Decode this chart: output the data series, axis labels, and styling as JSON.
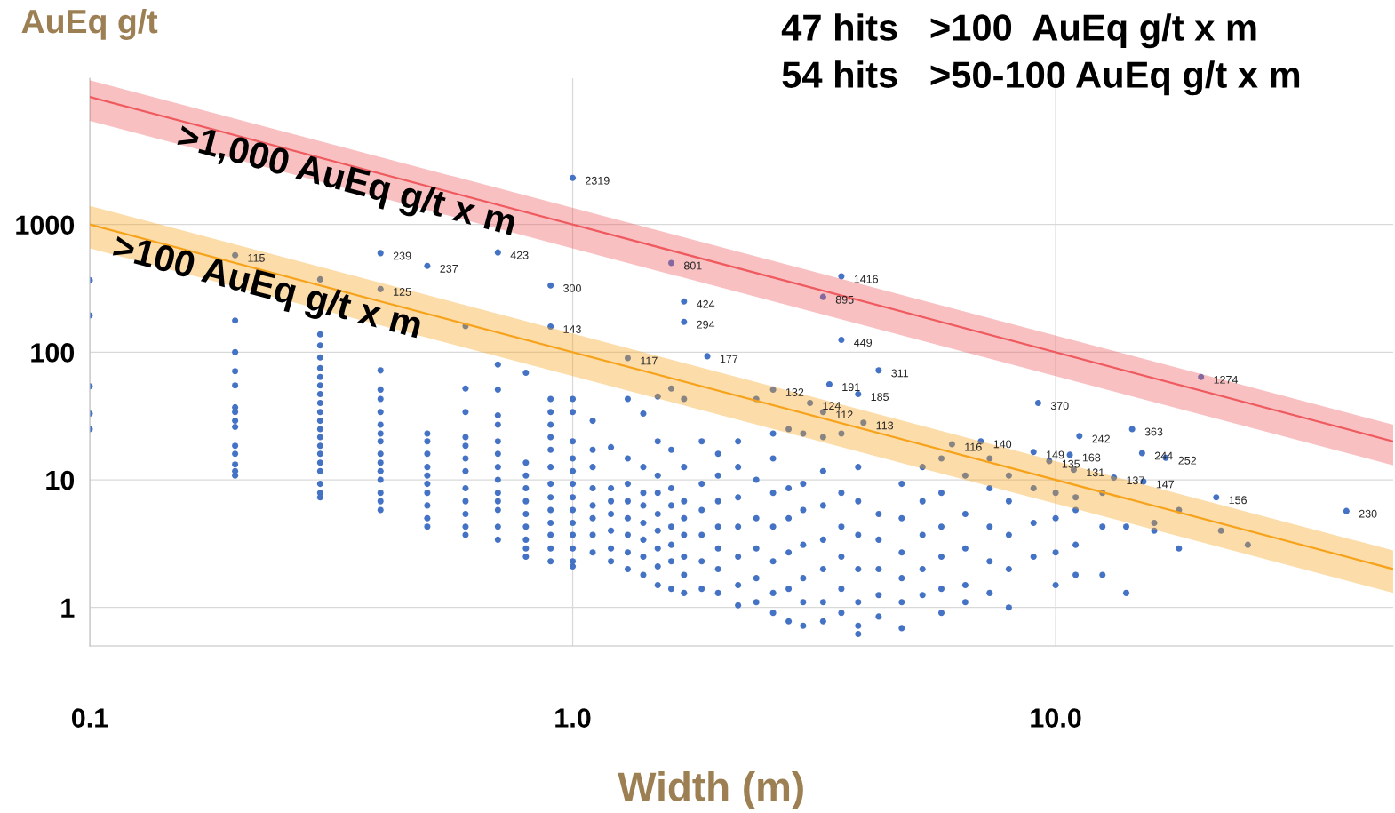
{
  "chart_data": {
    "type": "scatter",
    "xlabel": "Width (m)",
    "ylabel": "AuEq g/t",
    "log": "xy",
    "grid": true,
    "marker": "circle",
    "legend": false,
    "xlim": [
      0.1,
      50
    ],
    "xticks": [
      {
        "value": 0.1,
        "label": "0.1"
      },
      {
        "value": 1,
        "label": "1.0"
      },
      {
        "value": 10,
        "label": "10.0"
      }
    ],
    "ylim": [
      0.5,
      14000
    ],
    "yticks": [
      1,
      10,
      100,
      1000
    ],
    "series": [
      {
        "color": "#4472c4",
        "x": [
          0.1,
          0.1,
          0.1,
          0.1,
          0.1
        ],
        "values": [
          366,
          194,
          54,
          33,
          25
        ]
      },
      {
        "color": "#4472c4",
        "x": [
          0.2,
          0.2,
          0.2,
          0.2,
          0.2,
          0.2,
          0.2,
          0.2,
          0.2,
          0.2,
          0.2,
          0.2,
          0.2,
          0.2
        ],
        "values": [
          575,
          177,
          100,
          71,
          55,
          37,
          34,
          29,
          26,
          18.5,
          16,
          13.2,
          11.7,
          10.8
        ]
      },
      {
        "color": "#4472c4",
        "x": [
          0.3,
          0.3,
          0.3,
          0.3,
          0.3,
          0.3,
          0.3,
          0.3,
          0.3,
          0.3,
          0.3,
          0.3,
          0.3,
          0.3,
          0.3,
          0.3,
          0.3,
          0.3,
          0.3,
          0.3
        ],
        "values": [
          372,
          138,
          113,
          91,
          75,
          64,
          55,
          47,
          40,
          34,
          29,
          25,
          21.6,
          18.5,
          16,
          13.6,
          11.7,
          9.3,
          7.9,
          7.3
        ]
      },
      {
        "color": "#4472c4",
        "x": [
          0.4,
          0.4,
          0.4,
          0.4,
          0.4,
          0.4,
          0.4,
          0.4,
          0.4,
          0.4,
          0.4,
          0.4,
          0.4,
          0.4,
          0.4,
          0.4
        ],
        "values": [
          597,
          312,
          72,
          51,
          43,
          34,
          27,
          23,
          20,
          16,
          13.6,
          11.7,
          10,
          7.9,
          6.8,
          5.8
        ]
      },
      {
        "color": "#4472c4",
        "x": [
          0.5,
          0.5,
          0.5,
          0.5,
          0.5,
          0.5,
          0.5,
          0.5,
          0.5,
          0.5,
          0.5
        ],
        "values": [
          474,
          23,
          20,
          16,
          12.6,
          10.8,
          9.3,
          7.9,
          6.3,
          5,
          4.3
        ]
      },
      {
        "color": "#4472c4",
        "x": [
          0.6,
          0.6,
          0.6,
          0.6,
          0.6,
          0.6,
          0.6,
          0.6,
          0.6,
          0.6,
          0.6,
          0.6
        ],
        "values": [
          160,
          52,
          34,
          21.6,
          18.5,
          14.7,
          11.7,
          8.6,
          6.8,
          5.4,
          4.3,
          3.7
        ]
      },
      {
        "color": "#4472c4",
        "x": [
          0.7,
          0.7,
          0.7,
          0.7,
          0.7,
          0.7,
          0.7,
          0.7,
          0.7,
          0.7,
          0.7,
          0.7,
          0.7,
          0.7
        ],
        "values": [
          604,
          80,
          51,
          32,
          27,
          20,
          16,
          12.6,
          10,
          7.9,
          6.8,
          5.8,
          4.3,
          3.4
        ]
      },
      {
        "color": "#4472c4",
        "x": [
          0.8,
          0.8,
          0.8,
          0.8,
          0.8,
          0.8,
          0.8,
          0.8,
          0.8,
          0.8
        ],
        "values": [
          69,
          13.6,
          10.8,
          8.6,
          6.8,
          5.4,
          4.3,
          3.4,
          2.9,
          2.5
        ]
      },
      {
        "color": "#4472c4",
        "x": [
          0.9,
          0.9,
          0.9,
          0.9,
          0.9,
          0.9,
          0.9,
          0.9,
          0.9,
          0.9,
          0.9,
          0.9,
          0.9,
          0.9,
          0.9
        ],
        "values": [
          333,
          159,
          43,
          34,
          27,
          21.6,
          17.2,
          12.6,
          9.3,
          7.3,
          5.8,
          4.6,
          3.7,
          2.9,
          2.3
        ]
      },
      {
        "color": "#4472c4",
        "x": [
          1.0,
          1.0,
          1.0,
          1.0,
          1.0,
          1.0,
          1.0,
          1.0,
          1.0,
          1.0,
          1.0,
          1.0,
          1.0,
          1.0
        ],
        "values": [
          2319,
          43,
          34,
          20,
          14.7,
          11.7,
          9.3,
          7.3,
          5.8,
          4.6,
          3.7,
          2.9,
          2.3,
          2.1
        ]
      },
      {
        "color": "#4472c4",
        "x": [
          1.1,
          1.1,
          1.1,
          1.1,
          1.1,
          1.1,
          1.1,
          1.1
        ],
        "values": [
          29,
          17.2,
          12.6,
          8.6,
          6.3,
          5,
          3.7,
          2.7
        ]
      },
      {
        "color": "#4472c4",
        "x": [
          1.2,
          1.2,
          1.2,
          1.2,
          1.2,
          1.2,
          1.2
        ],
        "values": [
          18,
          8.6,
          6.8,
          5.4,
          4,
          2.9,
          2.3
        ]
      },
      {
        "color": "#4472c4",
        "x": [
          1.3,
          1.3,
          1.3,
          1.3,
          1.3,
          1.3,
          1.3,
          1.3,
          1.3
        ],
        "values": [
          90,
          43,
          14.7,
          9.3,
          6.8,
          5,
          3.7,
          2.7,
          2
        ]
      },
      {
        "color": "#4472c4",
        "x": [
          1.4,
          1.4,
          1.4,
          1.4,
          1.4,
          1.4,
          1.4,
          1.4
        ],
        "values": [
          33,
          12.6,
          7.9,
          6.3,
          4.6,
          3.4,
          2.5,
          1.8
        ]
      },
      {
        "color": "#4472c4",
        "x": [
          1.5,
          1.5,
          1.5,
          1.5,
          1.5,
          1.5,
          1.5,
          1.5,
          1.5
        ],
        "values": [
          45,
          20,
          10.8,
          7.9,
          5.4,
          4,
          2.9,
          2.1,
          1.5
        ]
      },
      {
        "color": "#4472c4",
        "x": [
          1.6,
          1.6,
          1.6,
          1.6,
          1.6,
          1.6,
          1.6,
          1.6,
          1.6
        ],
        "values": [
          500,
          52,
          17.2,
          8.6,
          6.3,
          4.3,
          3.1,
          2.3,
          1.4
        ]
      },
      {
        "color": "#4472c4",
        "x": [
          1.7,
          1.7,
          1.7,
          1.7,
          1.7,
          1.7,
          1.7,
          1.7,
          1.7,
          1.7
        ],
        "values": [
          250,
          173,
          43,
          12.6,
          6.8,
          5,
          3.7,
          2.5,
          1.8,
          1.3
        ]
      },
      {
        "color": "#4472c4",
        "x": [
          1.85,
          1.85,
          1.85,
          1.85,
          1.85,
          1.85,
          1.9
        ],
        "values": [
          20,
          9.3,
          5.8,
          3.7,
          2.3,
          1.4,
          93
        ]
      },
      {
        "color": "#4472c4",
        "x": [
          2.0,
          2.0,
          2.0,
          2.0,
          2.0,
          2.0,
          2.0
        ],
        "values": [
          16,
          10.8,
          6.8,
          4.3,
          2.9,
          2,
          1.3
        ]
      },
      {
        "color": "#4472c4",
        "x": [
          2.2,
          2.2,
          2.2,
          2.2,
          2.2,
          2.2,
          2.2
        ],
        "values": [
          20,
          12.6,
          7.3,
          4.3,
          2.5,
          1.5,
          1.04
        ]
      },
      {
        "color": "#4472c4",
        "x": [
          2.4,
          2.4,
          2.4,
          2.4,
          2.4,
          2.4
        ],
        "values": [
          43,
          10,
          5,
          2.9,
          1.7,
          1.1
        ]
      },
      {
        "color": "#4472c4",
        "x": [
          2.6,
          2.6,
          2.6,
          2.6,
          2.6,
          2.6,
          2.6,
          2.6
        ],
        "values": [
          51,
          23,
          14.7,
          7.9,
          4.3,
          2.3,
          1.3,
          0.91
        ]
      },
      {
        "color": "#4472c4",
        "x": [
          2.8,
          2.8,
          2.8,
          2.8,
          2.8,
          2.8
        ],
        "values": [
          25,
          8.6,
          5,
          2.7,
          1.4,
          0.78
        ]
      },
      {
        "color": "#4472c4",
        "x": [
          3.0,
          3.0,
          3.0,
          3.0,
          3.0,
          3.0,
          3.0,
          3.1
        ],
        "values": [
          23,
          9.3,
          5.8,
          3.1,
          1.7,
          1.1,
          0.72,
          40
        ]
      },
      {
        "color": "#4472c4",
        "x": [
          3.3,
          3.3,
          3.3,
          3.3,
          3.3,
          3.3,
          3.3,
          3.3,
          3.3,
          3.4
        ],
        "values": [
          271,
          34,
          21.6,
          11.7,
          6.3,
          3.4,
          2,
          1.1,
          0.78,
          56
        ]
      },
      {
        "color": "#4472c4",
        "x": [
          3.6,
          3.6,
          3.6,
          3.6,
          3.6,
          3.6,
          3.6,
          3.6
        ],
        "values": [
          393,
          125,
          23,
          7.9,
          4.3,
          2.5,
          1.4,
          0.91
        ]
      },
      {
        "color": "#4472c4",
        "x": [
          3.9,
          3.9,
          3.9,
          3.9,
          3.9,
          3.9,
          3.9,
          3.9,
          4.0
        ],
        "values": [
          47,
          12.6,
          6.8,
          3.7,
          2,
          1.1,
          0.72,
          0.62,
          28
        ]
      },
      {
        "color": "#4472c4",
        "x": [
          4.3,
          4.3,
          4.3,
          4.3,
          4.3,
          4.3,
          4.8,
          4.8,
          4.8,
          4.8,
          4.8,
          4.8
        ],
        "values": [
          72,
          5.4,
          3.4,
          2,
          1.25,
          0.85,
          9.3,
          5,
          2.7,
          1.7,
          1.1,
          0.69
        ]
      },
      {
        "color": "#4472c4",
        "x": [
          5.3,
          5.3,
          5.3,
          5.3,
          5.3,
          5.8,
          5.8,
          5.8,
          5.8,
          5.8,
          5.8,
          6.1
        ],
        "values": [
          12.6,
          6.8,
          3.7,
          2,
          1.25,
          14.7,
          7.9,
          4.3,
          2.5,
          1.4,
          0.91,
          19
        ]
      },
      {
        "color": "#4472c4",
        "x": [
          6.5,
          6.5,
          6.5,
          6.5,
          6.5,
          7.0,
          7.3,
          7.3,
          7.3,
          7.3,
          7.3
        ],
        "values": [
          10.8,
          5.4,
          2.9,
          1.5,
          1.1,
          20,
          14.7,
          8.6,
          4.3,
          2.3,
          1.3
        ]
      },
      {
        "color": "#4472c4",
        "x": [
          8.0,
          8.0,
          8.0,
          8.0,
          8.0,
          9.0,
          9.0,
          9.0,
          9.0,
          9.2,
          9.7
        ],
        "values": [
          10.8,
          6.8,
          3.7,
          2,
          1.0,
          16.5,
          8.6,
          4.6,
          2.5,
          40,
          14
        ]
      },
      {
        "color": "#4472c4",
        "x": [
          10.0,
          10.0,
          10.0,
          10.0,
          10.7,
          10.9,
          11.0,
          11.0,
          11.0,
          11.0,
          11.2
        ],
        "values": [
          7.9,
          5,
          2.7,
          1.5,
          15.7,
          12,
          7.3,
          5.8,
          3.1,
          1.8,
          22
        ]
      },
      {
        "color": "#4472c4",
        "x": [
          12.5,
          12.5,
          12.5,
          13.2,
          14.0,
          14.0,
          14.4,
          15.1,
          15.2,
          16.0,
          16.0,
          16.9,
          18.0,
          18.0
        ],
        "values": [
          7.9,
          4.3,
          1.8,
          10.4,
          4.3,
          1.3,
          25,
          16.2,
          9.7,
          4.6,
          4.0,
          14.9,
          5.8,
          2.9
        ]
      },
      {
        "color": "#4472c4",
        "x": [
          20,
          21.5,
          22,
          25,
          40
        ],
        "values": [
          64,
          7.3,
          4.0,
          3.1,
          5.7
        ]
      },
      {
        "type": "line",
        "marker": "none",
        "name": ">1,000 AuEq g/t x m",
        "color": "#ef5a5f",
        "x": [
          0.1,
          50
        ],
        "values": [
          10000,
          20
        ],
        "lower": [
          6500,
          13
        ],
        "upper": [
          13500,
          27
        ]
      },
      {
        "type": "line",
        "marker": "none",
        "name": ">100 AuEq g/t x m",
        "color": "#f7a21b",
        "x": [
          0.1,
          50
        ],
        "values": [
          1000,
          2
        ],
        "lower": [
          650,
          1.3
        ],
        "upper": [
          1400,
          2.8
        ]
      }
    ],
    "annotations": [
      "47 hits   >100  AuEq g/t x m",
      "54 hits   >50-100 AuEq g/t x m",
      {
        "text": "2319",
        "x": 1.0,
        "y": 2319
      },
      {
        "text": "115",
        "x": 0.2,
        "y": 575
      },
      {
        "text": "239",
        "x": 0.4,
        "y": 597
      },
      {
        "text": "237",
        "x": 0.5,
        "y": 474
      },
      {
        "text": "423",
        "x": 0.7,
        "y": 604
      },
      {
        "text": "125",
        "x": 0.4,
        "y": 312
      },
      {
        "text": "300",
        "x": 0.9,
        "y": 333
      },
      {
        "text": "143",
        "x": 0.9,
        "y": 159
      },
      {
        "text": "801",
        "x": 1.6,
        "y": 500
      },
      {
        "text": "424",
        "x": 1.7,
        "y": 250
      },
      {
        "text": "294",
        "x": 1.7,
        "y": 173
      },
      {
        "text": "1416",
        "x": 3.6,
        "y": 393
      },
      {
        "text": "895",
        "x": 3.3,
        "y": 271
      },
      {
        "text": "449",
        "x": 3.6,
        "y": 125
      },
      {
        "text": "117",
        "x": 1.3,
        "y": 90
      },
      {
        "text": "177",
        "x": 1.9,
        "y": 93
      },
      {
        "text": "311",
        "x": 4.3,
        "y": 72
      },
      {
        "text": "191",
        "x": 3.4,
        "y": 56
      },
      {
        "text": "185",
        "x": 3.9,
        "y": 47
      },
      {
        "text": "132",
        "x": 2.6,
        "y": 51
      },
      {
        "text": "124",
        "x": 3.1,
        "y": 40
      },
      {
        "text": "112",
        "x": 3.3,
        "y": 34
      },
      {
        "text": "113",
        "x": 4.0,
        "y": 28
      },
      {
        "text": "370",
        "x": 9.2,
        "y": 40
      },
      {
        "text": "1274",
        "x": 20,
        "y": 64
      },
      {
        "text": "242",
        "x": 11.2,
        "y": 22
      },
      {
        "text": "363",
        "x": 14.4,
        "y": 25
      },
      {
        "text": "140",
        "x": 7.0,
        "y": 20
      },
      {
        "text": "116",
        "x": 6.1,
        "y": 19
      },
      {
        "text": "149",
        "x": 9.0,
        "y": 16.5
      },
      {
        "text": "168",
        "x": 10.7,
        "y": 15.7
      },
      {
        "text": "135",
        "x": 9.7,
        "y": 14
      },
      {
        "text": "131",
        "x": 10.9,
        "y": 12
      },
      {
        "text": "244",
        "x": 15.1,
        "y": 16.2
      },
      {
        "text": "252",
        "x": 16.9,
        "y": 14.9
      },
      {
        "text": "137",
        "x": 13.2,
        "y": 10.4
      },
      {
        "text": "147",
        "x": 15.2,
        "y": 9.7
      },
      {
        "text": "156",
        "x": 21.5,
        "y": 7.3
      },
      {
        "text": "230",
        "x": 40,
        "y": 5.7
      }
    ]
  }
}
